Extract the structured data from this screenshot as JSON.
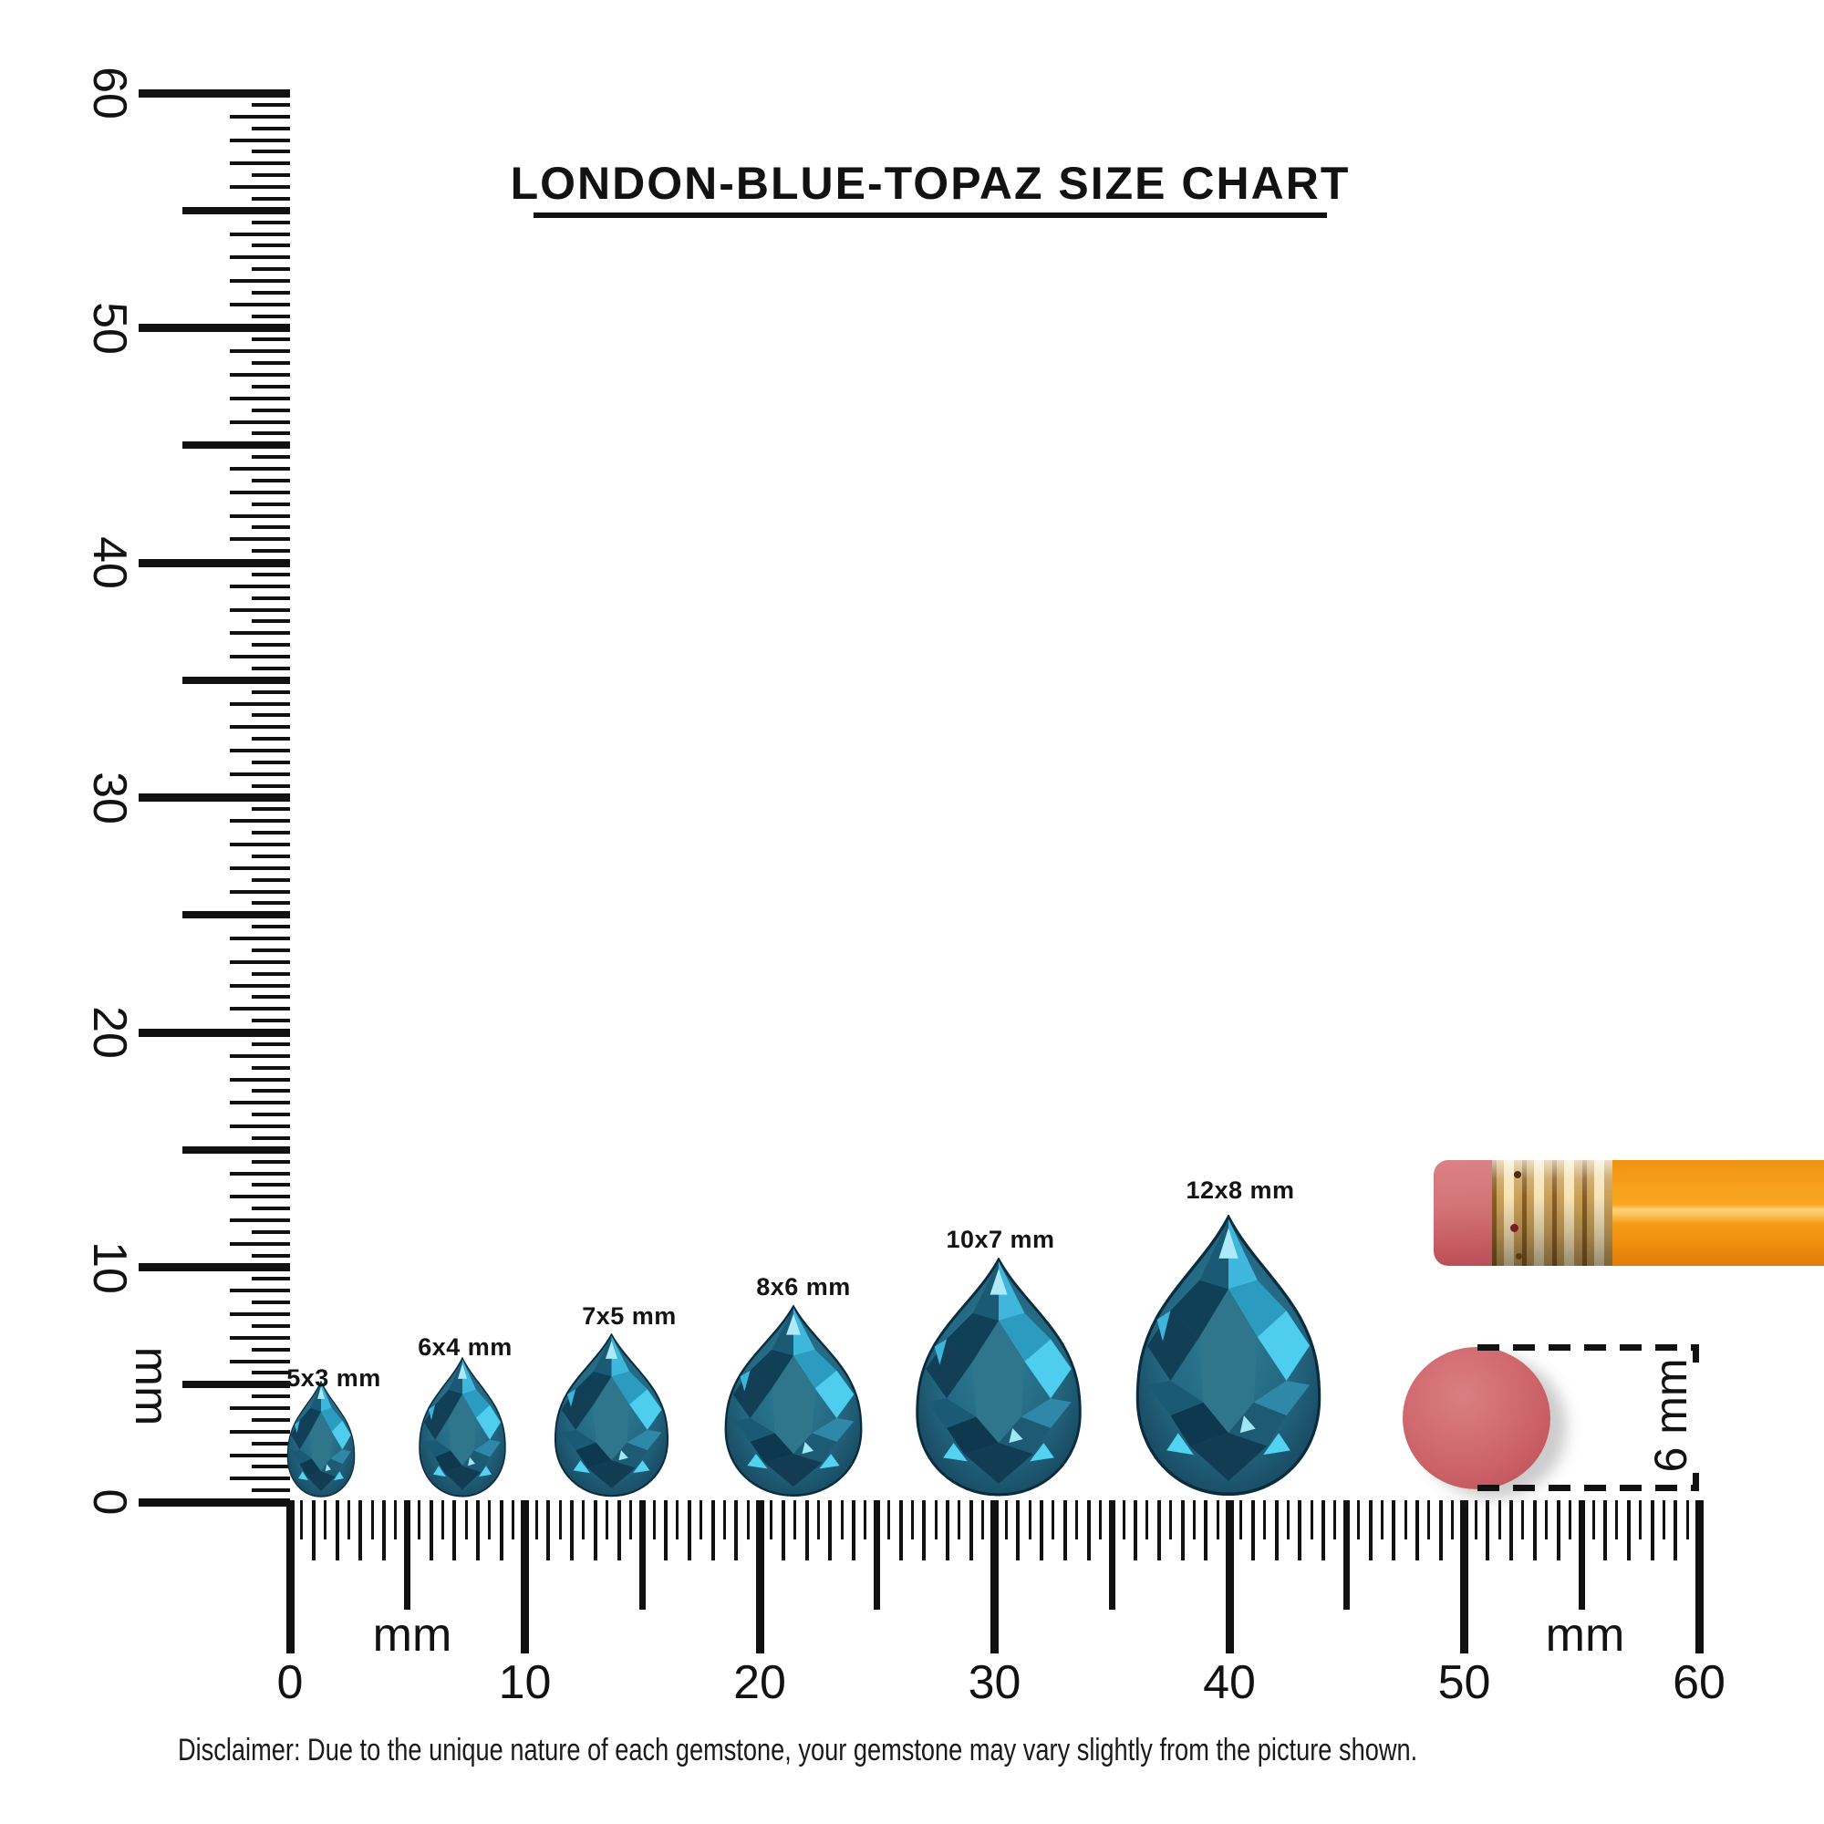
{
  "title": "LONDON-BLUE-TOPAZ SIZE CHART",
  "vertical_ruler": {
    "unit_label": "mm",
    "major_labels": [
      "0",
      "10",
      "20",
      "30",
      "40",
      "50",
      "60"
    ],
    "min_mm": 0,
    "max_mm": 60
  },
  "horizontal_ruler": {
    "unit_label_left": "mm",
    "unit_label_right": "mm",
    "major_labels": [
      "0",
      "10",
      "20",
      "30",
      "40",
      "50",
      "60"
    ],
    "min_mm": 0,
    "max_mm": 60
  },
  "gems": [
    {
      "label": "5x3 mm",
      "length_mm": 5,
      "width_mm": 3
    },
    {
      "label": "6x4 mm",
      "length_mm": 6,
      "width_mm": 4
    },
    {
      "label": "7x5 mm",
      "length_mm": 7,
      "width_mm": 5
    },
    {
      "label": "8x6 mm",
      "length_mm": 8,
      "width_mm": 6
    },
    {
      "label": "10x7 mm",
      "length_mm": 10,
      "width_mm": 7
    },
    {
      "label": "12x8 mm",
      "length_mm": 12,
      "width_mm": 8
    }
  ],
  "eraser_measurement": {
    "label": "6 mm"
  },
  "disclaimer": "Disclaimer: Due to the unique nature of each gemstone, your gemstone may vary slightly from the picture shown.",
  "colors": {
    "gem_body": "#23657f",
    "gem_bright": "#3fc0e5",
    "gem_dark": "#0f3d54",
    "pencil_body": "#f69d18",
    "pencil_ferrule": "#caa05a",
    "pencil_eraser": "#d4757a",
    "eraser_disc": "#c75d63",
    "ink": "#111111"
  }
}
